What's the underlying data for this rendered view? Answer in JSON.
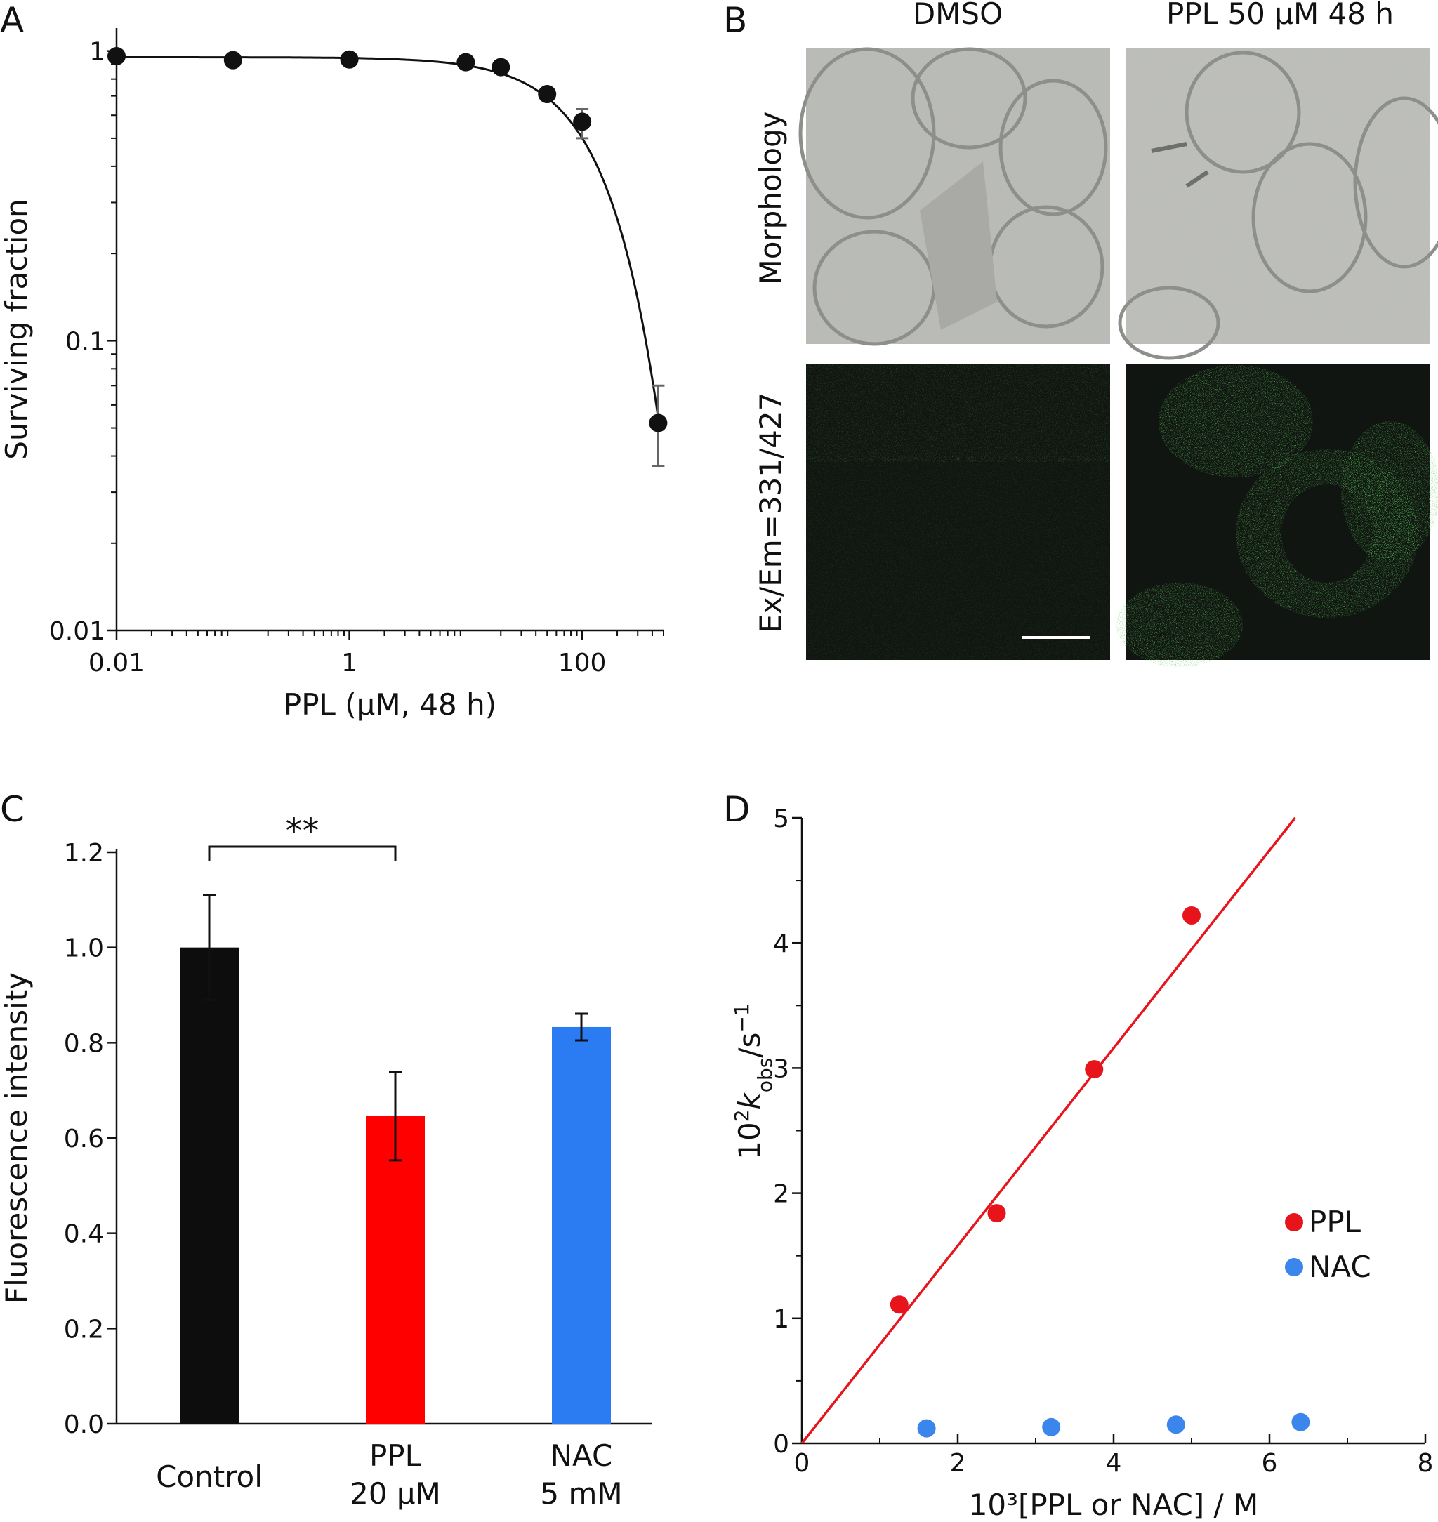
{
  "chart_data": [
    {
      "panel": "A",
      "type": "scatter",
      "xlabel": "PPL (μM, 48 h)",
      "ylabel": "Surviving fraction",
      "x_scale": "log",
      "y_scale": "log",
      "xlim": [
        0.01,
        500
      ],
      "ylim": [
        0.01,
        1.2
      ],
      "x_ticks": [
        "0.01",
        "1",
        "100"
      ],
      "y_ticks": [
        "0.01",
        "0.1",
        "1"
      ],
      "x": [
        0.01,
        0.1,
        1,
        10,
        20,
        50,
        100,
        450
      ],
      "y": [
        0.96,
        0.93,
        0.935,
        0.915,
        0.88,
        0.71,
        0.57,
        0.052
      ],
      "err_low": [
        0,
        0,
        0,
        0,
        0,
        0,
        0.07,
        0.015
      ],
      "err_high": [
        0,
        0,
        0,
        0,
        0,
        0,
        0.06,
        0.018
      ],
      "fit_curve": true,
      "color": "#111111"
    },
    {
      "panel": "C",
      "type": "bar",
      "ylabel": "Fluorescence intensity",
      "categories": [
        "Control",
        "PPL\n20 μM",
        "NAC\n5 mM"
      ],
      "category_lines": [
        [
          "Control"
        ],
        [
          "PPL",
          "20 μM"
        ],
        [
          "NAC",
          "5 mM"
        ]
      ],
      "values": [
        1.0,
        0.646,
        0.833
      ],
      "errors": [
        0.11,
        0.093,
        0.028
      ],
      "colors": [
        "#0d0d0d",
        "#ff0000",
        "#2b7bf2"
      ],
      "ylim": [
        0,
        1.2
      ],
      "y_ticks": [
        "0.0",
        "0.2",
        "0.4",
        "0.6",
        "0.8",
        "1.0",
        "1.2"
      ],
      "significance": {
        "from": 0,
        "to": 1,
        "label": "**"
      }
    },
    {
      "panel": "D",
      "type": "scatter",
      "xlabel": "10³[PPL or NAC] / M",
      "ylabel": "10²kobs/s⁻¹",
      "xlim": [
        0,
        8
      ],
      "ylim": [
        0,
        5
      ],
      "x_ticks": [
        "0",
        "2",
        "4",
        "6",
        "8"
      ],
      "y_ticks": [
        "0",
        "1",
        "2",
        "3",
        "4",
        "5"
      ],
      "legend": "right",
      "series": [
        {
          "name": "PPL",
          "color": "#e8141c",
          "x": [
            1.25,
            2.5,
            3.75,
            5.0
          ],
          "y": [
            1.11,
            1.84,
            2.99,
            4.22
          ],
          "fit_slope": 0.79
        },
        {
          "name": "NAC",
          "color": "#3b86ec",
          "x": [
            1.6,
            3.2,
            4.8,
            6.4
          ],
          "y": [
            0.12,
            0.13,
            0.15,
            0.17
          ]
        }
      ]
    }
  ],
  "panel_labels": {
    "a": "A",
    "b": "B",
    "c": "C",
    "d": "D"
  },
  "panel_b": {
    "col1": "DMSO",
    "col2": "PPL 50 μM 48 h",
    "row1": "Morphology",
    "row2": "Ex/Em=331/427"
  }
}
